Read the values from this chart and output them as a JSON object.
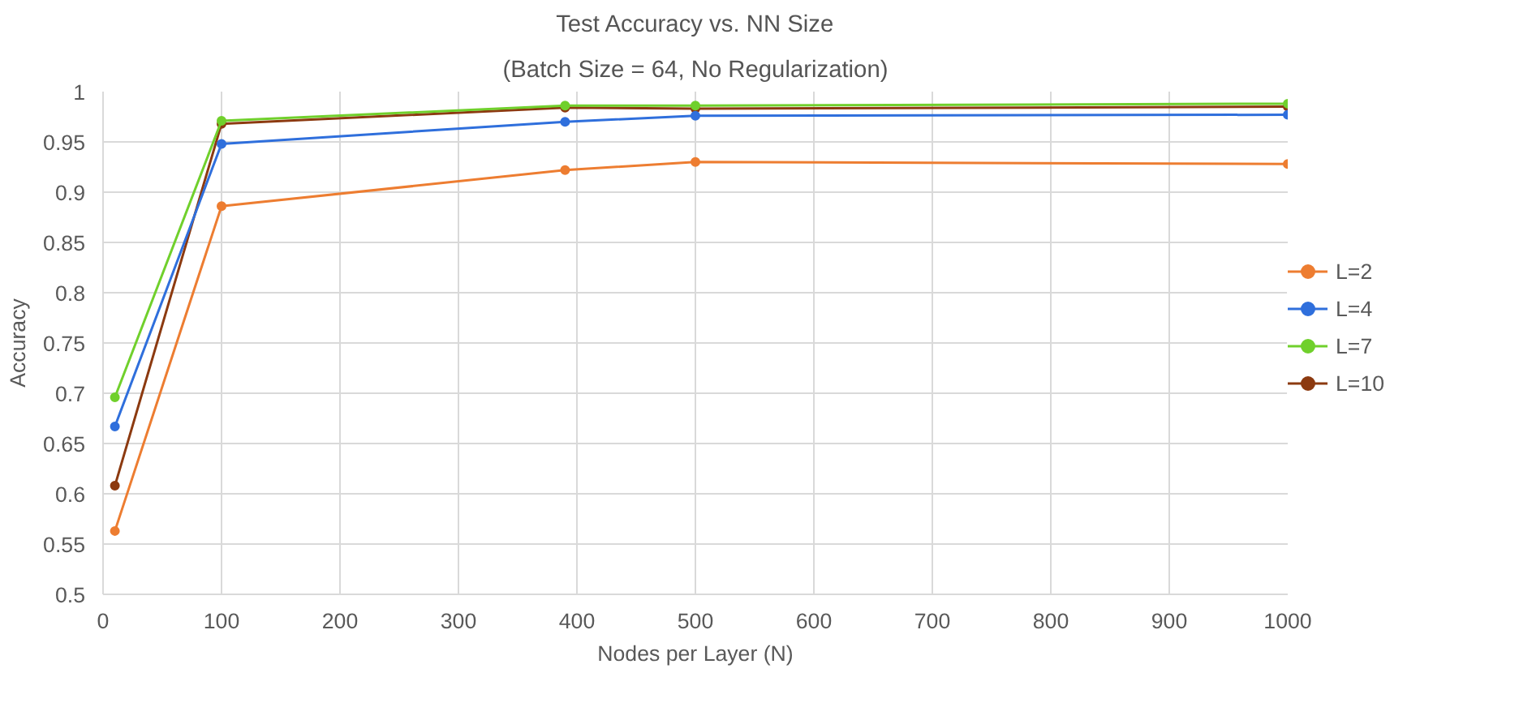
{
  "chart_data": {
    "type": "line",
    "title": "Test Accuracy vs. NN Size",
    "subtitle": "(Batch Size = 64, No Regularization)",
    "xlabel": "Nodes per Layer (N)",
    "ylabel": "Accuracy",
    "x": [
      10,
      100,
      390,
      500,
      1000
    ],
    "series": [
      {
        "name": "L=2",
        "color": "#ed7d31",
        "values": [
          0.563,
          0.886,
          0.922,
          0.93,
          0.928
        ]
      },
      {
        "name": "L=4",
        "color": "#2f6fdc",
        "values": [
          0.667,
          0.948,
          0.97,
          0.976,
          0.977
        ]
      },
      {
        "name": "L=7",
        "color": "#70d02c",
        "values": [
          0.696,
          0.971,
          0.986,
          0.986,
          0.988
        ]
      },
      {
        "name": "L=10",
        "color": "#8c3a10",
        "values": [
          0.608,
          0.968,
          0.984,
          0.983,
          0.985
        ]
      }
    ],
    "xlim": [
      0,
      1000
    ],
    "xticks": [
      0,
      100,
      200,
      300,
      400,
      500,
      600,
      700,
      800,
      900,
      1000
    ],
    "ylim": [
      0.5,
      1
    ],
    "yticks": [
      0.5,
      0.55,
      0.6,
      0.65,
      0.7,
      0.75,
      0.8,
      0.85,
      0.9,
      0.95,
      1
    ],
    "grid": true,
    "legend": "right",
    "marker": "circle",
    "line_style": "solid"
  }
}
